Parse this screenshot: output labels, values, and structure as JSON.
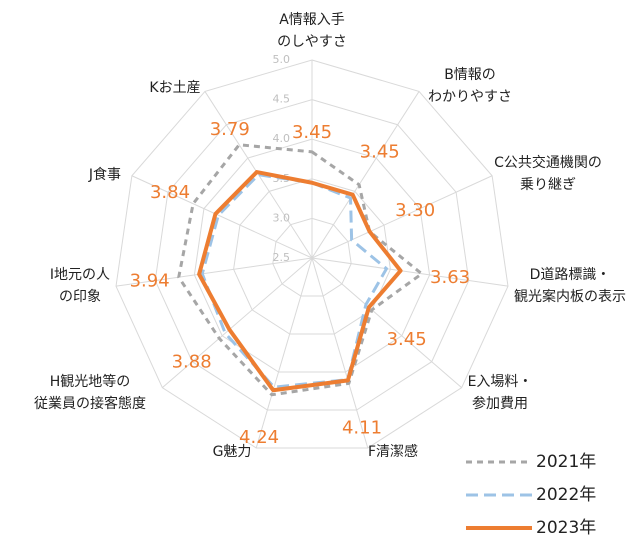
{
  "chart_data": {
    "type": "radar",
    "categories": [
      [
        "A情報入手",
        "のしやすさ"
      ],
      [
        "B情報の",
        "わかりやすさ"
      ],
      [
        "C公共交通機関の",
        "乗り継ぎ"
      ],
      [
        "D道路標識・",
        "観光案内板の表示"
      ],
      [
        "E入場料・",
        "参加費用"
      ],
      [
        "F清潔感"
      ],
      [
        "G魅力"
      ],
      [
        "H観光地等の",
        "従業員の接客態度"
      ],
      [
        "I地元の人",
        "の印象"
      ],
      [
        "J食事"
      ],
      [
        "Kお土産"
      ]
    ],
    "ylim": [
      2.5,
      5.0
    ],
    "yticks": [
      2.5,
      {
        "value": 3,
        "label": "3.0"
      },
      3.5,
      {
        "value": 4,
        "label": "4.0"
      },
      4.5,
      {
        "value": 5,
        "label": "5.0"
      }
    ],
    "grid": true,
    "series": [
      {
        "name": "2021年",
        "color": "#a6a6a6",
        "dash": "dashed",
        "values": [
          3.84,
          3.6,
          3.3,
          3.9,
          3.5,
          4.15,
          4.3,
          4.05,
          4.2,
          4.15,
          4.2
        ]
      },
      {
        "name": "2022年",
        "color": "#9dc3e6",
        "dash": "dashed",
        "values": [
          3.45,
          3.4,
          3.05,
          3.45,
          3.4,
          4.1,
          4.2,
          3.95,
          3.9,
          3.8,
          3.75
        ]
      },
      {
        "name": "2023年",
        "color": "#ed7d31",
        "dash": "solid",
        "values": [
          3.45,
          3.45,
          3.3,
          3.63,
          3.45,
          4.11,
          4.24,
          3.88,
          3.94,
          3.84,
          3.79
        ],
        "value_labels": [
          "3.45",
          "3.45",
          "3.30",
          "3.63",
          "3.45",
          "4.11",
          "4.24",
          "3.88",
          "3.94",
          "3.84",
          "3.79"
        ]
      }
    ],
    "legend": "bottom-right"
  }
}
